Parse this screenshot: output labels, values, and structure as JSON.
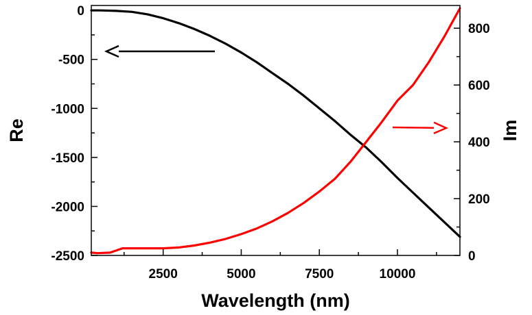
{
  "chart_data": {
    "type": "line",
    "xlabel": "Wavelength (nm)",
    "ylabel_left": "Re",
    "ylabel_right": "Im",
    "xlim": [
      200,
      12000
    ],
    "ylim_left": [
      -2500,
      50
    ],
    "ylim_right": [
      0,
      880
    ],
    "xticks": [
      2500,
      5000,
      7500,
      10000
    ],
    "yticks_left": [
      0,
      -500,
      -1000,
      -1500,
      -2000,
      -2500
    ],
    "yticks_right": [
      0,
      200,
      400,
      600,
      800
    ],
    "grid": false,
    "series": [
      {
        "axis": "left",
        "color": "#000000",
        "x": [
          200,
          500,
          1000,
          1500,
          2000,
          2500,
          3000,
          3500,
          4000,
          4500,
          5000,
          5500,
          6000,
          6500,
          7000,
          7500,
          8000,
          8500,
          9000,
          9500,
          10000,
          10500,
          11000,
          11500,
          12000
        ],
        "y": [
          0,
          0,
          -5,
          -15,
          -40,
          -80,
          -130,
          -190,
          -260,
          -340,
          -430,
          -530,
          -640,
          -750,
          -870,
          -1000,
          -1130,
          -1270,
          -1400,
          -1550,
          -1710,
          -1860,
          -2010,
          -2160,
          -2310
        ]
      },
      {
        "axis": "right",
        "color": "#ff0000",
        "x": [
          200,
          400,
          800,
          1200,
          1600,
          2000,
          2500,
          3000,
          3500,
          4000,
          4500,
          5000,
          5500,
          6000,
          6500,
          7000,
          7500,
          8000,
          8500,
          9000,
          9500,
          10000,
          10500,
          11000,
          11500,
          12000
        ],
        "y": [
          10,
          8,
          10,
          25,
          25,
          25,
          25,
          28,
          35,
          45,
          58,
          75,
          95,
          120,
          150,
          185,
          225,
          270,
          330,
          400,
          470,
          545,
          600,
          680,
          770,
          870
        ]
      }
    ],
    "annotations": [
      {
        "type": "arrow",
        "direction": "left",
        "points_to": "left-axis",
        "color": "#000000"
      },
      {
        "type": "arrow",
        "direction": "right",
        "points_to": "right-axis",
        "color": "#ff0000"
      }
    ]
  }
}
